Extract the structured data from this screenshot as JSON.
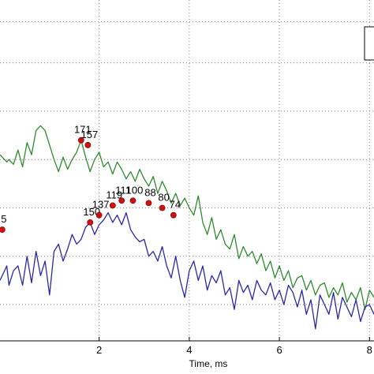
{
  "chart_data": {
    "type": "line",
    "xlabel": "Time, ms",
    "ylabel": "",
    "xlim": [
      -0.2,
      8.1
    ],
    "ylim": [
      -2.75,
      4.3
    ],
    "x_ticks": [
      2,
      4,
      6,
      8
    ],
    "grid": true,
    "legend": "top-right",
    "colors": {
      "series_1": "#2e8b2e",
      "series_2": "#2828a8",
      "marker": "#cc1111",
      "grid": "#808080"
    },
    "series": [
      {
        "x": [
          -0.2,
          -0.05,
          0.0,
          0.1,
          0.2,
          0.3,
          0.4,
          0.5,
          0.6,
          0.7,
          0.8,
          0.9,
          1.0,
          1.1,
          1.2,
          1.3,
          1.4,
          1.5,
          1.6,
          1.7,
          1.8,
          1.9,
          2.0,
          2.1,
          2.2,
          2.3,
          2.4,
          2.5,
          2.6,
          2.7,
          2.8,
          2.9,
          3.0,
          3.1,
          3.2,
          3.3,
          3.4,
          3.5,
          3.6,
          3.7,
          3.8,
          3.9,
          4.0,
          4.1,
          4.2,
          4.3,
          4.4,
          4.5,
          4.6,
          4.7,
          4.8,
          4.9,
          5.0,
          5.1,
          5.2,
          5.3,
          5.4,
          5.5,
          5.6,
          5.7,
          5.8,
          5.9,
          6.0,
          6.1,
          6.2,
          6.3,
          6.4,
          6.5,
          6.6,
          6.7,
          6.8,
          6.9,
          7.0,
          7.1,
          7.2,
          7.3,
          7.4,
          7.5,
          7.6,
          7.7,
          7.8,
          7.9,
          8.0,
          8.1
        ],
        "y": [
          1.1,
          0.95,
          1.0,
          0.9,
          1.2,
          0.85,
          1.35,
          1.1,
          1.6,
          1.7,
          1.6,
          1.3,
          1.0,
          0.75,
          1.05,
          0.8,
          1.0,
          1.15,
          1.4,
          1.05,
          0.75,
          1.0,
          1.15,
          0.85,
          0.95,
          0.7,
          0.95,
          0.8,
          0.6,
          0.75,
          0.55,
          0.8,
          0.6,
          0.45,
          0.65,
          0.3,
          0.55,
          0.35,
          0.1,
          0.3,
          0.05,
          0.2,
          0.0,
          -0.15,
          0.25,
          -0.3,
          -0.55,
          -0.2,
          -0.65,
          -0.45,
          -0.75,
          -0.85,
          -0.55,
          -1.05,
          -0.8,
          -1.0,
          -0.9,
          -1.15,
          -0.95,
          -1.3,
          -1.1,
          -1.45,
          -1.2,
          -1.5,
          -1.3,
          -1.65,
          -1.45,
          -1.4,
          -1.7,
          -1.5,
          -1.8,
          -1.6,
          -1.55,
          -1.85,
          -1.65,
          -1.8,
          -1.55,
          -1.95,
          -1.75,
          -1.9,
          -1.65,
          -2.1,
          -1.7,
          -1.85
        ]
      },
      {
        "x": [
          -0.2,
          -0.05,
          0.0,
          0.1,
          0.2,
          0.3,
          0.4,
          0.5,
          0.6,
          0.7,
          0.8,
          0.9,
          1.0,
          1.1,
          1.2,
          1.3,
          1.4,
          1.5,
          1.6,
          1.7,
          1.8,
          1.9,
          2.0,
          2.1,
          2.2,
          2.3,
          2.4,
          2.5,
          2.6,
          2.7,
          2.8,
          2.9,
          3.0,
          3.1,
          3.2,
          3.3,
          3.4,
          3.5,
          3.6,
          3.7,
          3.8,
          3.9,
          4.0,
          4.1,
          4.2,
          4.3,
          4.4,
          4.5,
          4.6,
          4.7,
          4.8,
          4.9,
          5.0,
          5.1,
          5.2,
          5.3,
          5.4,
          5.5,
          5.6,
          5.7,
          5.8,
          5.9,
          6.0,
          6.1,
          6.2,
          6.3,
          6.4,
          6.5,
          6.6,
          6.7,
          6.8,
          6.9,
          7.0,
          7.1,
          7.2,
          7.3,
          7.4,
          7.5,
          7.6,
          7.7,
          7.8,
          7.9,
          8.0,
          8.1
        ],
        "y": [
          -1.5,
          -1.2,
          -1.6,
          -1.3,
          -1.2,
          -1.6,
          -1.0,
          -1.55,
          -0.9,
          -1.4,
          -1.1,
          -1.8,
          -0.9,
          -0.75,
          -1.1,
          -0.85,
          -0.55,
          -0.75,
          -0.65,
          -0.4,
          -0.3,
          -0.55,
          -0.35,
          -0.25,
          -0.1,
          -0.3,
          -0.15,
          -0.35,
          -0.1,
          -0.45,
          -0.6,
          -0.7,
          -0.65,
          -1.0,
          -0.9,
          -1.1,
          -0.8,
          -1.2,
          -1.45,
          -1.0,
          -1.5,
          -1.85,
          -1.3,
          -1.1,
          -1.5,
          -1.2,
          -1.7,
          -1.4,
          -1.55,
          -1.3,
          -1.8,
          -1.65,
          -2.1,
          -1.5,
          -1.75,
          -1.6,
          -1.9,
          -1.5,
          -1.7,
          -1.8,
          -1.55,
          -1.9,
          -1.7,
          -2.0,
          -1.6,
          -1.75,
          -2.05,
          -1.7,
          -2.2,
          -1.9,
          -2.5,
          -1.8,
          -2.0,
          -2.2,
          -1.75,
          -2.3,
          -1.85,
          -2.05,
          -2.25,
          -1.9,
          -2.35,
          -2.05,
          -2.0,
          -2.2
        ]
      }
    ],
    "markers": [
      {
        "label": "171",
        "x": 1.6,
        "y": 1.4,
        "series": 0
      },
      {
        "label": "157",
        "x": 1.75,
        "y": 1.3,
        "series": 0
      },
      {
        "label": "5",
        "x": -0.15,
        "y": -0.45,
        "series": 1
      },
      {
        "label": "150",
        "x": 1.8,
        "y": -0.3,
        "series": 1
      },
      {
        "label": "137",
        "x": 2.0,
        "y": -0.15,
        "series": 1
      },
      {
        "label": "119",
        "x": 2.3,
        "y": 0.05,
        "series": 1
      },
      {
        "label": "111",
        "x": 2.5,
        "y": 0.15,
        "series": 1
      },
      {
        "label": "100",
        "x": 2.75,
        "y": 0.15,
        "series": 1
      },
      {
        "label": "88",
        "x": 3.1,
        "y": 0.1,
        "series": 1
      },
      {
        "label": "80",
        "x": 3.4,
        "y": 0.0,
        "series": 1
      },
      {
        "label": "74",
        "x": 3.65,
        "y": -0.15,
        "series": 1
      }
    ]
  }
}
